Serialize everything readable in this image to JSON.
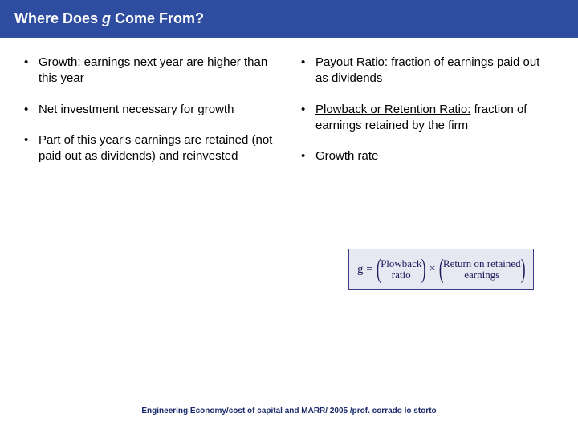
{
  "title": {
    "prefix": "Where Does ",
    "italic": "g",
    "suffix": "  Come From?"
  },
  "left_bullets": [
    {
      "text": "Growth: earnings next year are higher than this year"
    },
    {
      "text": "Net investment necessary for growth"
    },
    {
      "text": "Part of this year's earnings are retained (not paid out as dividends) and reinvested"
    }
  ],
  "right_bullets": [
    {
      "underline": "Payout Ratio:",
      "rest": " fraction of earnings paid out as dividends"
    },
    {
      "underline": "Plowback or Retention Ratio:",
      "rest": " fraction of earnings retained by the firm"
    },
    {
      "text": "Growth rate"
    }
  ],
  "formula": {
    "lhs": "g =",
    "term1_top": "Plowback",
    "term1_bot": "ratio",
    "times": "×",
    "term2_top": "Return on retained",
    "term2_bot": "earnings"
  },
  "footer": "Engineering Economy/cost of capital and MARR/ 2005 /prof. corrado lo storto",
  "colors": {
    "title_bg": "#2e4da0",
    "title_fg": "#ffffff",
    "text": "#000000",
    "formula_border": "#3a3a8a",
    "formula_bg": "#e8e8f2",
    "footer": "#1a2a6a"
  }
}
